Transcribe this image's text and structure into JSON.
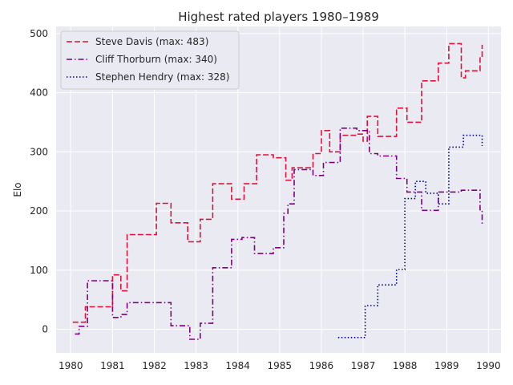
{
  "chart_data": {
    "type": "line",
    "step": "post",
    "title": "Highest rated players 1980–1989",
    "xlabel": "",
    "ylabel": "Elo",
    "xlim": [
      1979.65,
      1990.3
    ],
    "ylim": [
      -40,
      512
    ],
    "xticks": [
      1980,
      1981,
      1982,
      1983,
      1984,
      1985,
      1986,
      1987,
      1988,
      1989,
      1990
    ],
    "yticks": [
      0,
      100,
      200,
      300,
      400,
      500
    ],
    "grid": true,
    "background": "#eaeaf2",
    "legend_position": "top-left",
    "series": [
      {
        "name": "Steve Davis (max: 483)",
        "color": "#dc143c",
        "dash": "dashed",
        "x": [
          1980.05,
          1980.35,
          1980.9,
          1981.0,
          1981.2,
          1981.35,
          1982.05,
          1982.4,
          1982.8,
          1983.1,
          1983.4,
          1983.85,
          1984.15,
          1984.45,
          1984.85,
          1985.15,
          1985.3,
          1985.8,
          1986.0,
          1986.2,
          1986.45,
          1986.85,
          1987.0,
          1987.1,
          1987.35,
          1987.8,
          1988.05,
          1988.4,
          1988.8,
          1989.05,
          1989.35,
          1989.45,
          1989.8,
          1989.85
        ],
        "y": [
          12,
          38,
          38,
          92,
          65,
          160,
          213,
          180,
          148,
          186,
          246,
          220,
          246,
          295,
          290,
          252,
          273,
          297,
          336,
          300,
          328,
          330,
          318,
          360,
          326,
          374,
          350,
          420,
          450,
          483,
          425,
          437,
          460,
          481
        ]
      },
      {
        "name": "Cliff Thorburn (max: 340)",
        "color": "#800080",
        "dash": "dashdot",
        "x": [
          1980.1,
          1980.2,
          1980.4,
          1980.8,
          1981.0,
          1981.2,
          1981.35,
          1982.1,
          1982.4,
          1982.85,
          1983.1,
          1983.4,
          1983.85,
          1984.1,
          1984.4,
          1984.85,
          1985.1,
          1985.2,
          1985.35,
          1985.8,
          1986.05,
          1986.45,
          1986.85,
          1987.15,
          1987.35,
          1987.8,
          1988.05,
          1988.4,
          1988.8,
          1989.05,
          1989.35,
          1989.8,
          1989.85
        ],
        "y": [
          -8,
          5,
          82,
          82,
          20,
          25,
          45,
          45,
          6,
          -17,
          10,
          104,
          152,
          155,
          128,
          138,
          196,
          212,
          270,
          260,
          282,
          340,
          336,
          297,
          293,
          255,
          232,
          201,
          232,
          232,
          235,
          202,
          178
        ]
      },
      {
        "name": "Stephen Hendry (max: 328)",
        "color": "#00008b",
        "dash": "dotted",
        "x": [
          1986.4,
          1986.75,
          1987.05,
          1987.35,
          1987.8,
          1988.0,
          1988.25,
          1988.5,
          1988.8,
          1989.05,
          1989.4,
          1989.85
        ],
        "y": [
          -14,
          -14,
          40,
          75,
          101,
          221,
          250,
          230,
          212,
          308,
          328,
          310
        ]
      }
    ]
  }
}
